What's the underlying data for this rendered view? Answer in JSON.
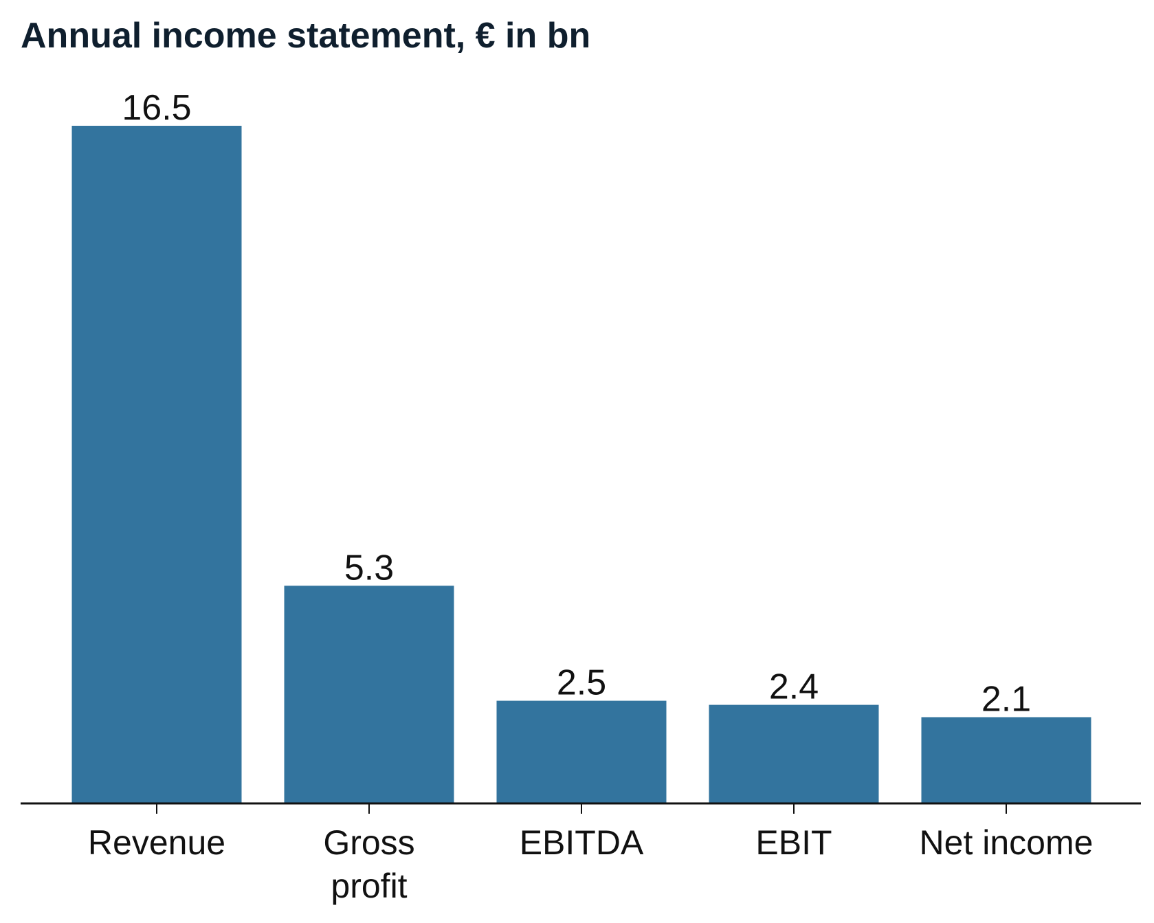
{
  "chart_data": {
    "type": "bar",
    "title": "Annual income statement, € in bn",
    "categories": [
      "Revenue",
      "Gross profit",
      "EBITDA",
      "EBIT",
      "Net income"
    ],
    "category_lines": [
      [
        "Revenue"
      ],
      [
        "Gross",
        "profit"
      ],
      [
        "EBITDA"
      ],
      [
        "EBIT"
      ],
      [
        "Net income"
      ]
    ],
    "values": [
      16.5,
      5.3,
      2.5,
      2.4,
      2.1
    ],
    "value_labels": [
      "16.5",
      "5.3",
      "2.5",
      "2.4",
      "2.1"
    ],
    "xlabel": "",
    "ylabel": "",
    "ylim": [
      0,
      16.5
    ],
    "grid": false,
    "bar_color": "#33749e",
    "axis_color": "#111111"
  }
}
